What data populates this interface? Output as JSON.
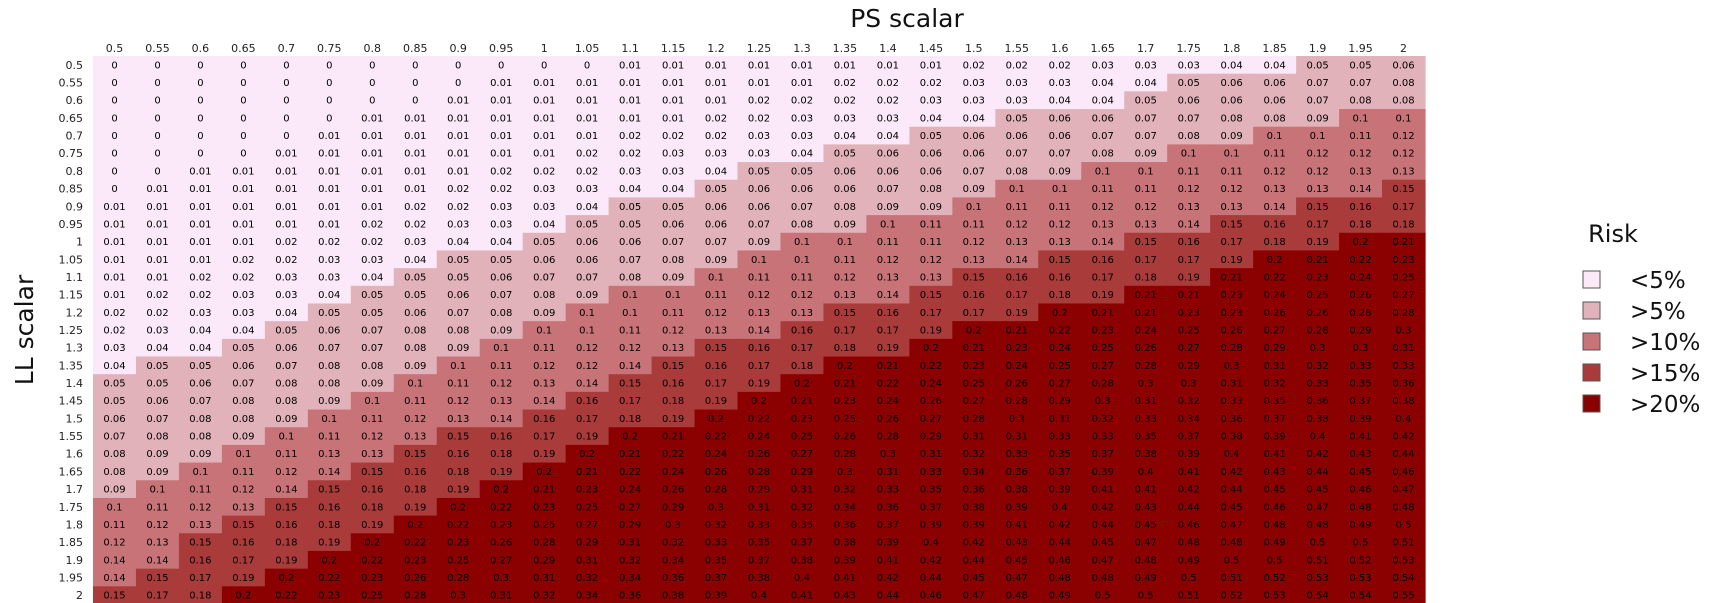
{
  "chart_data": {
    "type": "heatmap",
    "xlabel": "PS scalar",
    "ylabel": "LL scalar",
    "x": [
      "0.5",
      "0.55",
      "0.6",
      "0.65",
      "0.7",
      "0.75",
      "0.8",
      "0.85",
      "0.9",
      "0.95",
      "1",
      "1.05",
      "1.1",
      "1.15",
      "1.2",
      "1.25",
      "1.3",
      "1.35",
      "1.4",
      "1.45",
      "1.5",
      "1.55",
      "1.6",
      "1.65",
      "1.7",
      "1.75",
      "1.8",
      "1.85",
      "1.9",
      "1.95",
      "2"
    ],
    "y": [
      "0.5",
      "0.55",
      "0.6",
      "0.65",
      "0.7",
      "0.75",
      "0.8",
      "0.85",
      "0.9",
      "0.95",
      "1",
      "1.05",
      "1.1",
      "1.15",
      "1.2",
      "1.25",
      "1.3",
      "1.35",
      "1.4",
      "1.45",
      "1.5",
      "1.55",
      "1.6",
      "1.65",
      "1.7",
      "1.75",
      "1.8",
      "1.85",
      "1.9",
      "1.95",
      "2"
    ],
    "values": [
      [
        0,
        0,
        0,
        0,
        0,
        0,
        0,
        0,
        0,
        0,
        0,
        0,
        0.01,
        0.01,
        0.01,
        0.01,
        0.01,
        0.01,
        0.01,
        0.01,
        0.02,
        0.02,
        0.02,
        0.03,
        0.03,
        0.03,
        0.04,
        0.04,
        0.05,
        0.05,
        0.06
      ],
      [
        0,
        0,
        0,
        0,
        0,
        0,
        0,
        0,
        0,
        0.01,
        0.01,
        0.01,
        0.01,
        0.01,
        0.01,
        0.01,
        0.01,
        0.02,
        0.02,
        0.02,
        0.03,
        0.03,
        0.03,
        0.04,
        0.04,
        0.05,
        0.06,
        0.06,
        0.07,
        0.07,
        0.08
      ],
      [
        0,
        0,
        0,
        0,
        0,
        0,
        0,
        0,
        0.01,
        0.01,
        0.01,
        0.01,
        0.01,
        0.01,
        0.01,
        0.02,
        0.02,
        0.02,
        0.02,
        0.03,
        0.03,
        0.03,
        0.04,
        0.04,
        0.05,
        0.06,
        0.06,
        0.06,
        0.07,
        0.08,
        0.08
      ],
      [
        0,
        0,
        0,
        0,
        0,
        0,
        0.01,
        0.01,
        0.01,
        0.01,
        0.01,
        0.01,
        0.01,
        0.01,
        0.02,
        0.02,
        0.03,
        0.03,
        0.03,
        0.04,
        0.04,
        0.05,
        0.06,
        0.06,
        0.07,
        0.07,
        0.08,
        0.08,
        0.09,
        0.1,
        0.1
      ],
      [
        0,
        0,
        0,
        0,
        0,
        0.01,
        0.01,
        0.01,
        0.01,
        0.01,
        0.01,
        0.01,
        0.02,
        0.02,
        0.02,
        0.03,
        0.03,
        0.04,
        0.04,
        0.05,
        0.06,
        0.06,
        0.06,
        0.07,
        0.07,
        0.08,
        0.09,
        0.1,
        0.1,
        0.11,
        0.12
      ],
      [
        0,
        0,
        0,
        0,
        0.01,
        0.01,
        0.01,
        0.01,
        0.01,
        0.01,
        0.01,
        0.02,
        0.02,
        0.03,
        0.03,
        0.03,
        0.04,
        0.05,
        0.06,
        0.06,
        0.06,
        0.07,
        0.07,
        0.08,
        0.09,
        0.1,
        0.1,
        0.11,
        0.12,
        0.12,
        0.12
      ],
      [
        0,
        0,
        0.01,
        0.01,
        0.01,
        0.01,
        0.01,
        0.01,
        0.01,
        0.02,
        0.02,
        0.02,
        0.03,
        0.03,
        0.04,
        0.05,
        0.05,
        0.06,
        0.06,
        0.06,
        0.07,
        0.08,
        0.09,
        0.1,
        0.1,
        0.11,
        0.11,
        0.12,
        0.12,
        0.13,
        0.13
      ],
      [
        0,
        0.01,
        0.01,
        0.01,
        0.01,
        0.01,
        0.01,
        0.01,
        0.02,
        0.02,
        0.03,
        0.03,
        0.04,
        0.04,
        0.05,
        0.06,
        0.06,
        0.06,
        0.07,
        0.08,
        0.09,
        0.1,
        0.1,
        0.11,
        0.11,
        0.12,
        0.12,
        0.13,
        0.13,
        0.14,
        0.15
      ],
      [
        0.01,
        0.01,
        0.01,
        0.01,
        0.01,
        0.01,
        0.01,
        0.02,
        0.02,
        0.03,
        0.03,
        0.04,
        0.05,
        0.05,
        0.06,
        0.06,
        0.07,
        0.08,
        0.09,
        0.09,
        0.1,
        0.11,
        0.11,
        0.12,
        0.12,
        0.13,
        0.13,
        0.14,
        0.15,
        0.16,
        0.17
      ],
      [
        0.01,
        0.01,
        0.01,
        0.01,
        0.01,
        0.01,
        0.02,
        0.02,
        0.03,
        0.03,
        0.04,
        0.05,
        0.05,
        0.06,
        0.06,
        0.07,
        0.08,
        0.09,
        0.1,
        0.11,
        0.11,
        0.12,
        0.12,
        0.13,
        0.13,
        0.14,
        0.15,
        0.16,
        0.17,
        0.18,
        0.18
      ],
      [
        0.01,
        0.01,
        0.01,
        0.01,
        0.02,
        0.02,
        0.02,
        0.03,
        0.04,
        0.04,
        0.05,
        0.06,
        0.06,
        0.07,
        0.07,
        0.09,
        0.1,
        0.1,
        0.11,
        0.11,
        0.12,
        0.13,
        0.13,
        0.14,
        0.15,
        0.16,
        0.17,
        0.18,
        0.19,
        0.2,
        0.21
      ],
      [
        0.01,
        0.01,
        0.01,
        0.02,
        0.02,
        0.03,
        0.03,
        0.04,
        0.05,
        0.05,
        0.06,
        0.06,
        0.07,
        0.08,
        0.09,
        0.1,
        0.1,
        0.11,
        0.12,
        0.12,
        0.13,
        0.14,
        0.15,
        0.16,
        0.17,
        0.17,
        0.19,
        0.2,
        0.21,
        0.22,
        0.23
      ],
      [
        0.01,
        0.01,
        0.02,
        0.02,
        0.03,
        0.03,
        0.04,
        0.05,
        0.05,
        0.06,
        0.07,
        0.07,
        0.08,
        0.09,
        0.1,
        0.11,
        0.11,
        0.12,
        0.13,
        0.13,
        0.15,
        0.16,
        0.16,
        0.17,
        0.18,
        0.19,
        0.21,
        0.22,
        0.23,
        0.24,
        0.25
      ],
      [
        0.01,
        0.02,
        0.02,
        0.03,
        0.03,
        0.04,
        0.05,
        0.05,
        0.06,
        0.07,
        0.08,
        0.09,
        0.1,
        0.1,
        0.11,
        0.12,
        0.12,
        0.13,
        0.14,
        0.15,
        0.16,
        0.17,
        0.18,
        0.19,
        0.21,
        0.21,
        0.23,
        0.24,
        0.25,
        0.26,
        0.27
      ],
      [
        0.02,
        0.02,
        0.03,
        0.03,
        0.04,
        0.05,
        0.05,
        0.06,
        0.07,
        0.08,
        0.09,
        0.1,
        0.1,
        0.11,
        0.12,
        0.13,
        0.13,
        0.15,
        0.16,
        0.17,
        0.17,
        0.19,
        0.2,
        0.21,
        0.21,
        0.23,
        0.23,
        0.26,
        0.26,
        0.28,
        0.28
      ],
      [
        0.02,
        0.03,
        0.04,
        0.04,
        0.05,
        0.06,
        0.07,
        0.08,
        0.08,
        0.09,
        0.1,
        0.1,
        0.11,
        0.12,
        0.13,
        0.14,
        0.16,
        0.17,
        0.17,
        0.19,
        0.2,
        0.21,
        0.22,
        0.23,
        0.24,
        0.25,
        0.26,
        0.27,
        0.28,
        0.29,
        0.3
      ],
      [
        0.03,
        0.04,
        0.04,
        0.05,
        0.06,
        0.07,
        0.07,
        0.08,
        0.09,
        0.1,
        0.11,
        0.12,
        0.12,
        0.13,
        0.15,
        0.16,
        0.17,
        0.18,
        0.19,
        0.2,
        0.21,
        0.23,
        0.24,
        0.25,
        0.26,
        0.27,
        0.28,
        0.29,
        0.3,
        0.3,
        0.31
      ],
      [
        0.04,
        0.05,
        0.05,
        0.06,
        0.07,
        0.08,
        0.08,
        0.09,
        0.1,
        0.11,
        0.12,
        0.12,
        0.14,
        0.15,
        0.16,
        0.17,
        0.18,
        0.2,
        0.21,
        0.22,
        0.23,
        0.24,
        0.25,
        0.27,
        0.28,
        0.29,
        0.3,
        0.31,
        0.32,
        0.33,
        0.33
      ],
      [
        0.05,
        0.05,
        0.06,
        0.07,
        0.08,
        0.08,
        0.09,
        0.1,
        0.11,
        0.12,
        0.13,
        0.14,
        0.15,
        0.16,
        0.17,
        0.19,
        0.2,
        0.21,
        0.22,
        0.24,
        0.25,
        0.26,
        0.27,
        0.28,
        0.3,
        0.3,
        0.31,
        0.32,
        0.33,
        0.35,
        0.36
      ],
      [
        0.05,
        0.06,
        0.07,
        0.08,
        0.08,
        0.09,
        0.1,
        0.11,
        0.12,
        0.13,
        0.14,
        0.16,
        0.17,
        0.18,
        0.19,
        0.2,
        0.21,
        0.23,
        0.24,
        0.26,
        0.27,
        0.28,
        0.29,
        0.3,
        0.31,
        0.32,
        0.33,
        0.35,
        0.36,
        0.37,
        0.38
      ],
      [
        0.06,
        0.07,
        0.08,
        0.08,
        0.09,
        0.1,
        0.11,
        0.12,
        0.13,
        0.14,
        0.16,
        0.17,
        0.18,
        0.19,
        0.2,
        0.22,
        0.23,
        0.25,
        0.26,
        0.27,
        0.28,
        0.3,
        0.31,
        0.32,
        0.33,
        0.34,
        0.36,
        0.37,
        0.38,
        0.39,
        0.4
      ],
      [
        0.07,
        0.08,
        0.08,
        0.09,
        0.1,
        0.11,
        0.12,
        0.13,
        0.15,
        0.16,
        0.17,
        0.19,
        0.2,
        0.21,
        0.22,
        0.24,
        0.25,
        0.26,
        0.28,
        0.29,
        0.31,
        0.31,
        0.33,
        0.33,
        0.35,
        0.37,
        0.38,
        0.39,
        0.4,
        0.41,
        0.42
      ],
      [
        0.08,
        0.09,
        0.09,
        0.1,
        0.11,
        0.13,
        0.13,
        0.15,
        0.16,
        0.18,
        0.19,
        0.2,
        0.21,
        0.22,
        0.24,
        0.26,
        0.27,
        0.28,
        0.3,
        0.31,
        0.32,
        0.33,
        0.35,
        0.37,
        0.38,
        0.39,
        0.4,
        0.41,
        0.42,
        0.43,
        0.44
      ],
      [
        0.08,
        0.09,
        0.1,
        0.11,
        0.12,
        0.14,
        0.15,
        0.16,
        0.18,
        0.19,
        0.2,
        0.21,
        0.22,
        0.24,
        0.26,
        0.28,
        0.29,
        0.3,
        0.31,
        0.33,
        0.34,
        0.36,
        0.37,
        0.39,
        0.4,
        0.41,
        0.42,
        0.43,
        0.44,
        0.45,
        0.46
      ],
      [
        0.09,
        0.1,
        0.11,
        0.12,
        0.14,
        0.15,
        0.16,
        0.18,
        0.19,
        0.2,
        0.21,
        0.23,
        0.24,
        0.26,
        0.28,
        0.29,
        0.31,
        0.32,
        0.33,
        0.35,
        0.36,
        0.38,
        0.39,
        0.41,
        0.41,
        0.42,
        0.44,
        0.45,
        0.45,
        0.46,
        0.47
      ],
      [
        0.1,
        0.11,
        0.12,
        0.13,
        0.15,
        0.16,
        0.18,
        0.19,
        0.2,
        0.22,
        0.23,
        0.25,
        0.27,
        0.29,
        0.3,
        0.31,
        0.32,
        0.34,
        0.36,
        0.37,
        0.38,
        0.39,
        0.4,
        0.42,
        0.43,
        0.44,
        0.45,
        0.46,
        0.47,
        0.48,
        0.48
      ],
      [
        0.11,
        0.12,
        0.13,
        0.15,
        0.16,
        0.18,
        0.19,
        0.2,
        0.22,
        0.23,
        0.25,
        0.27,
        0.29,
        0.3,
        0.32,
        0.33,
        0.35,
        0.36,
        0.37,
        0.39,
        0.39,
        0.41,
        0.42,
        0.44,
        0.45,
        0.46,
        0.47,
        0.48,
        0.48,
        0.49,
        0.5
      ],
      [
        0.12,
        0.13,
        0.15,
        0.16,
        0.18,
        0.19,
        0.2,
        0.22,
        0.23,
        0.26,
        0.28,
        0.29,
        0.31,
        0.32,
        0.33,
        0.35,
        0.37,
        0.38,
        0.39,
        0.4,
        0.42,
        0.43,
        0.44,
        0.45,
        0.47,
        0.48,
        0.48,
        0.49,
        0.5,
        0.5,
        0.51
      ],
      [
        0.14,
        0.14,
        0.16,
        0.17,
        0.19,
        0.2,
        0.22,
        0.23,
        0.25,
        0.27,
        0.29,
        0.31,
        0.32,
        0.34,
        0.35,
        0.37,
        0.38,
        0.39,
        0.41,
        0.42,
        0.44,
        0.45,
        0.46,
        0.47,
        0.48,
        0.49,
        0.5,
        0.5,
        0.51,
        0.52,
        0.53
      ],
      [
        0.14,
        0.15,
        0.17,
        0.19,
        0.2,
        0.22,
        0.23,
        0.26,
        0.28,
        0.3,
        0.31,
        0.32,
        0.34,
        0.36,
        0.37,
        0.38,
        0.4,
        0.41,
        0.42,
        0.44,
        0.45,
        0.47,
        0.48,
        0.48,
        0.49,
        0.5,
        0.51,
        0.52,
        0.53,
        0.53,
        0.54
      ],
      [
        0.15,
        0.17,
        0.18,
        0.2,
        0.22,
        0.23,
        0.25,
        0.28,
        0.3,
        0.31,
        0.32,
        0.34,
        0.36,
        0.38,
        0.39,
        0.4,
        0.41,
        0.43,
        0.44,
        0.46,
        0.47,
        0.48,
        0.49,
        0.5,
        0.5,
        0.51,
        0.52,
        0.53,
        0.54,
        0.54,
        0.55
      ]
    ],
    "legend": {
      "title": "Risk",
      "placement": "right",
      "entries": [
        {
          "label": "<5%",
          "color": "#fbe9f9"
        },
        {
          "label": ">5%",
          "color": "#e2b2ba"
        },
        {
          "label": ">10%",
          "color": "#c77377"
        },
        {
          "label": ">15%",
          "color": "#a93b3b"
        },
        {
          "label": ">20%",
          "color": "#8b0000"
        }
      ]
    },
    "thresholds": [
      0.05,
      0.1,
      0.15,
      0.2
    ]
  }
}
